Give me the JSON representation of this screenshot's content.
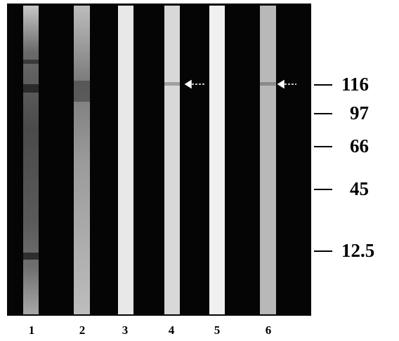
{
  "lanes": [
    "1",
    "2",
    "3",
    "4",
    "5",
    "6"
  ],
  "markers": [
    "116",
    "97",
    "66",
    "45",
    "12.5"
  ]
}
